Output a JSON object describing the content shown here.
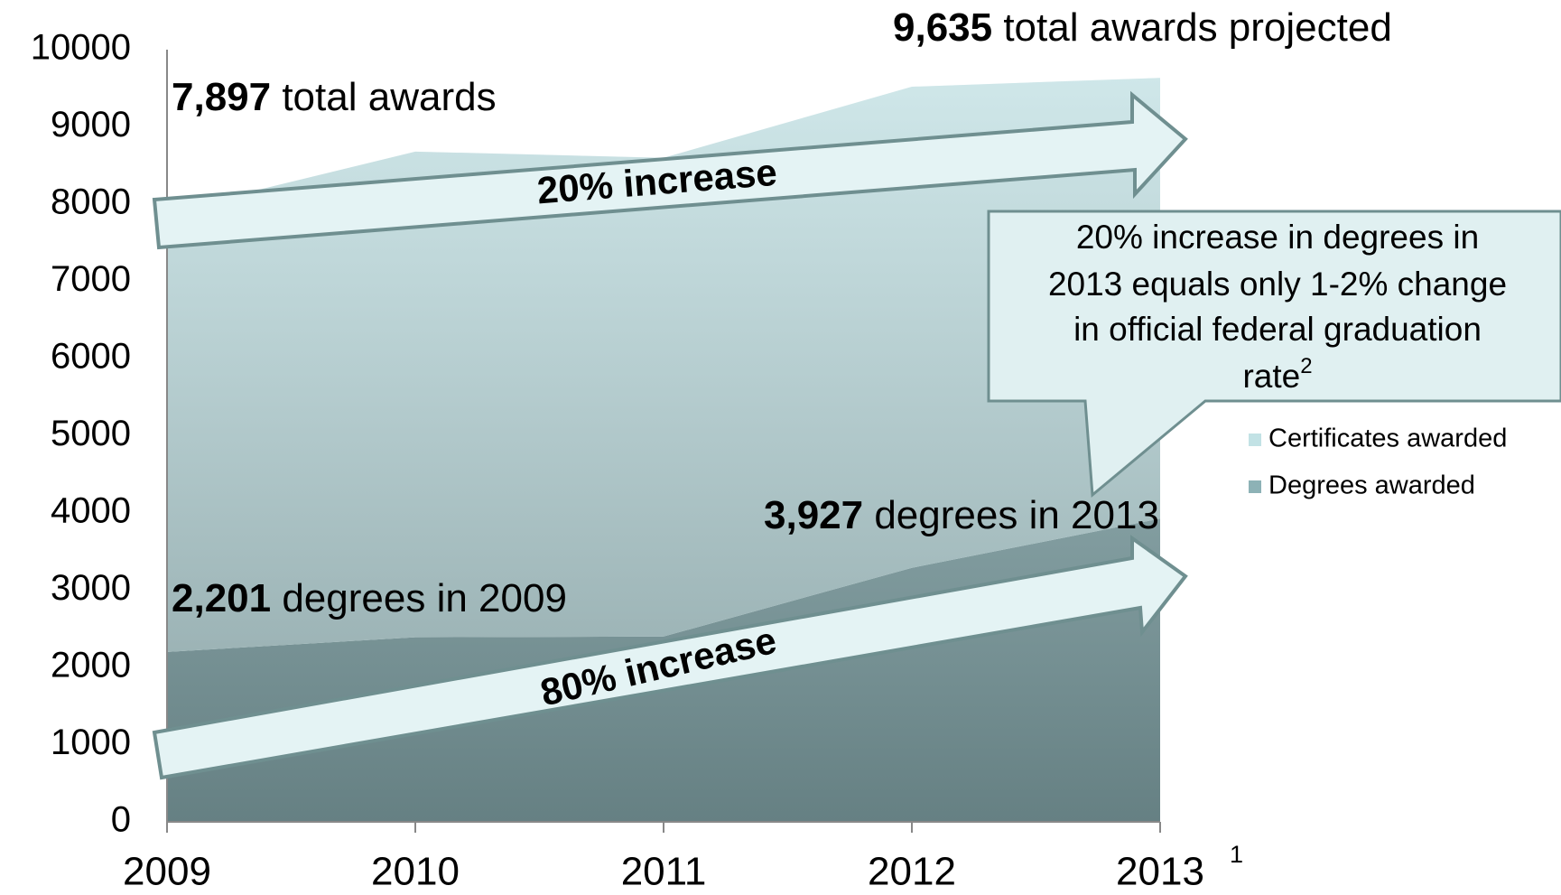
{
  "chart_data": {
    "type": "stacked_area",
    "categories": [
      "2009",
      "2010",
      "2011",
      "2012",
      "2013"
    ],
    "x_footnote": "1",
    "series": [
      {
        "name": "Degrees awarded",
        "color": "#8db2b6",
        "values": [
          2201,
          2390,
          2400,
          3290,
          3927
        ]
      },
      {
        "name": "Certificates awarded",
        "color": "#c2e2e5",
        "values": [
          5696,
          6290,
          6200,
          6230,
          5708
        ]
      }
    ],
    "ylim": [
      0,
      10000
    ],
    "yticks": [
      0,
      1000,
      2000,
      3000,
      4000,
      5000,
      6000,
      7000,
      8000,
      9000,
      10000
    ],
    "grid": true,
    "annotations": [
      {
        "bold": "9,635",
        "text": " total awards projected"
      },
      {
        "bold": "7,897",
        "text": " total awards"
      },
      {
        "bold": "3,927",
        "text": " degrees in 2013"
      },
      {
        "bold": "2,201",
        "text": " degrees in 2009"
      }
    ],
    "arrows": [
      "20% increase",
      "80% increase"
    ],
    "callout": {
      "lines": [
        "20% increase in degrees in",
        "2013 equals only 1-2% change",
        "in official federal graduation",
        "rate"
      ],
      "superscript": "2"
    }
  }
}
